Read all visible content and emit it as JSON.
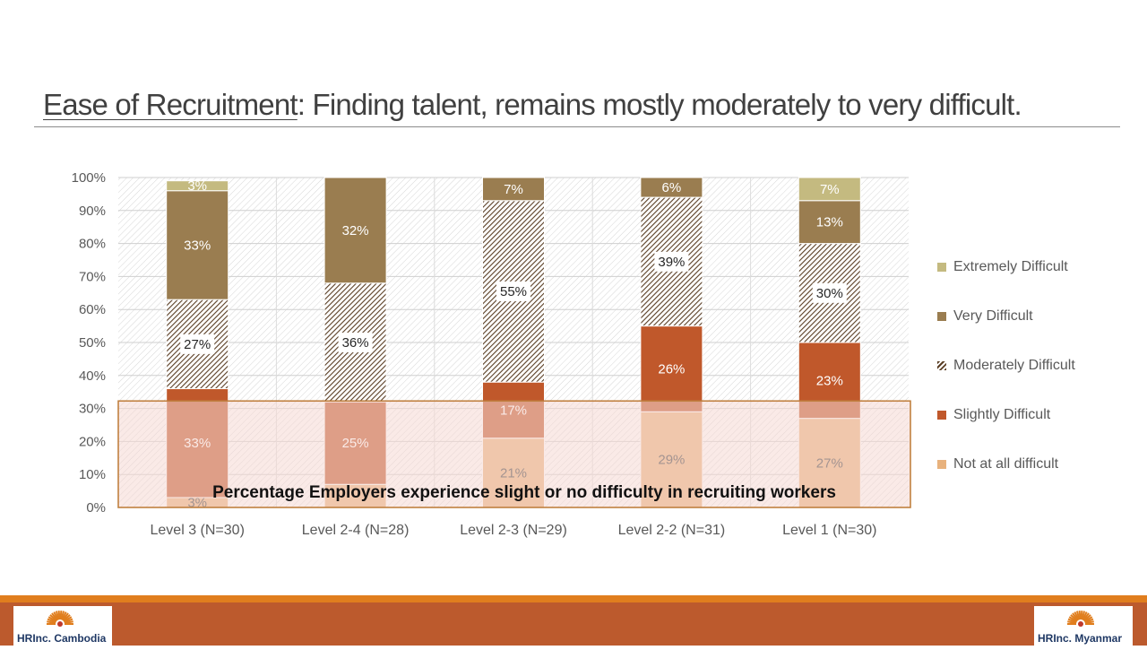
{
  "title": {
    "underlined": "Ease of Recruitment",
    "rest": ":  Finding talent, remains mostly moderately to very difficult."
  },
  "chart_data": {
    "type": "bar",
    "stacked": true,
    "categories": [
      "Level 3 (N=30)",
      "Level 2-4 (N=28)",
      "Level 2-3 (N=29)",
      "Level 2-2 (N=31)",
      "Level 1 (N=30)"
    ],
    "series": [
      {
        "name": "Not at all difficult",
        "color": "#E8B27D",
        "values": [
          3,
          7,
          21,
          29,
          27
        ],
        "labels": [
          "3%",
          "",
          "21%",
          "29%",
          "27%"
        ]
      },
      {
        "name": "Slightly Difficult",
        "color": "#C0582B",
        "values": [
          33,
          25,
          17,
          26,
          23
        ],
        "labels": [
          "33%",
          "25%",
          "17%",
          "26%",
          "23%"
        ]
      },
      {
        "name": "Moderately Difficult",
        "color": "#6B4A2B",
        "pattern": "hatched",
        "values": [
          27,
          36,
          55,
          39,
          30
        ],
        "labels": [
          "27%",
          "36%",
          "55%",
          "39%",
          "30%"
        ]
      },
      {
        "name": "Very Difficult",
        "color": "#9A7D50",
        "values": [
          33,
          32,
          7,
          6,
          13
        ],
        "labels": [
          "33%",
          "32%",
          "7%",
          "6%",
          "13%"
        ]
      },
      {
        "name": "Extremely Difficult",
        "color": "#C4BA80",
        "values": [
          3,
          0,
          0,
          0,
          7
        ],
        "labels": [
          "3%",
          "",
          "",
          "",
          "7%"
        ]
      }
    ],
    "yticks": [
      "0%",
      "10%",
      "20%",
      "30%",
      "40%",
      "50%",
      "60%",
      "70%",
      "80%",
      "90%",
      "100%"
    ],
    "ylim": [
      0,
      100
    ],
    "legend_position": "right",
    "annotation": {
      "text": "Percentage Employers experience slight or no difficulty in recruiting workers",
      "range": [
        0,
        32
      ]
    }
  },
  "footer": {
    "logo_left": "HRInc. Cambodia",
    "logo_right": "HRInc. Myanmar",
    "colors": {
      "top_stripe": "#E07E1E",
      "band": "#BC5A2D"
    }
  }
}
